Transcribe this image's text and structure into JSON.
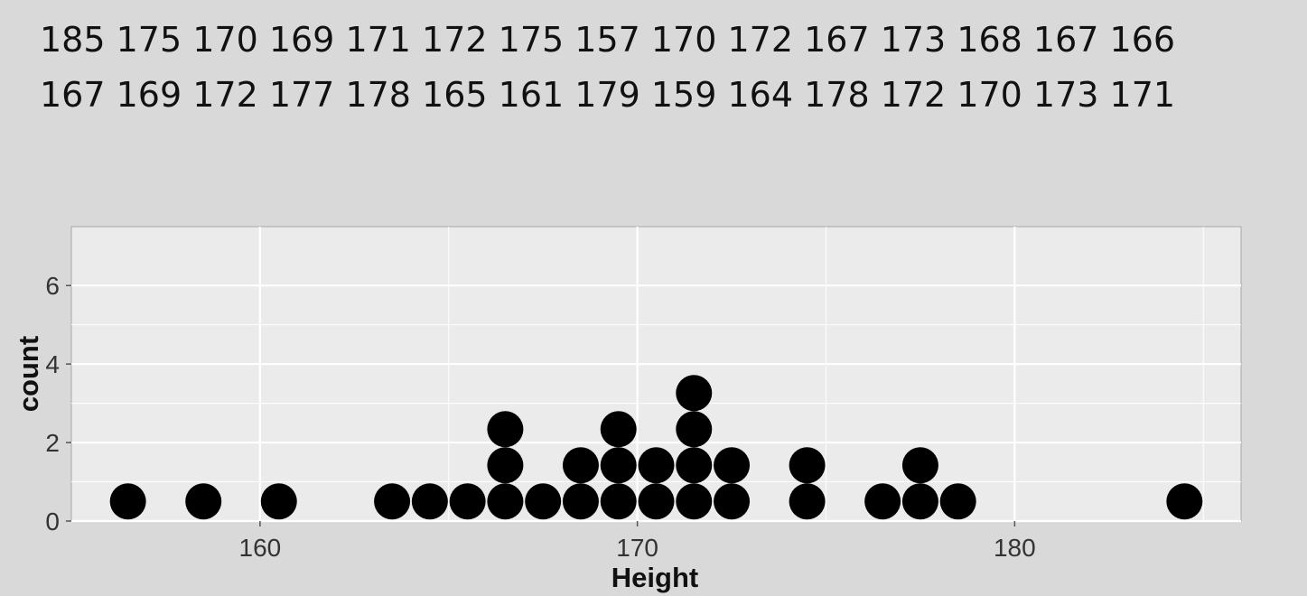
{
  "data_text": {
    "lines": [
      "185 175 170 169 171 172 175 157 170 172 167 173 168 167 166",
      "167 169 172 177 178 165 161 179 159 164 178 172 170 173 171"
    ]
  },
  "chart_data": {
    "type": "dotplot",
    "xlabel": "Height",
    "ylabel": "count",
    "xlim": [
      155,
      186
    ],
    "ylim": [
      0,
      7.5
    ],
    "x_ticks": [
      160,
      170,
      180
    ],
    "y_ticks": [
      0,
      2,
      4,
      6
    ],
    "grid": true,
    "dots": [
      {
        "x": 156.5,
        "count": 1
      },
      {
        "x": 158.5,
        "count": 1
      },
      {
        "x": 160.5,
        "count": 1
      },
      {
        "x": 163.5,
        "count": 1
      },
      {
        "x": 164.5,
        "count": 1
      },
      {
        "x": 165.5,
        "count": 1
      },
      {
        "x": 166.5,
        "count": 3
      },
      {
        "x": 167.5,
        "count": 1
      },
      {
        "x": 168.5,
        "count": 2
      },
      {
        "x": 169.5,
        "count": 3
      },
      {
        "x": 170.5,
        "count": 2
      },
      {
        "x": 171.5,
        "count": 4
      },
      {
        "x": 172.5,
        "count": 2
      },
      {
        "x": 174.5,
        "count": 2
      },
      {
        "x": 176.5,
        "count": 1
      },
      {
        "x": 177.5,
        "count": 2
      },
      {
        "x": 178.5,
        "count": 1
      },
      {
        "x": 184.5,
        "count": 1
      }
    ],
    "colors": {
      "panel": "#ebebeb",
      "grid": "#ffffff",
      "dot": "#000000"
    }
  }
}
